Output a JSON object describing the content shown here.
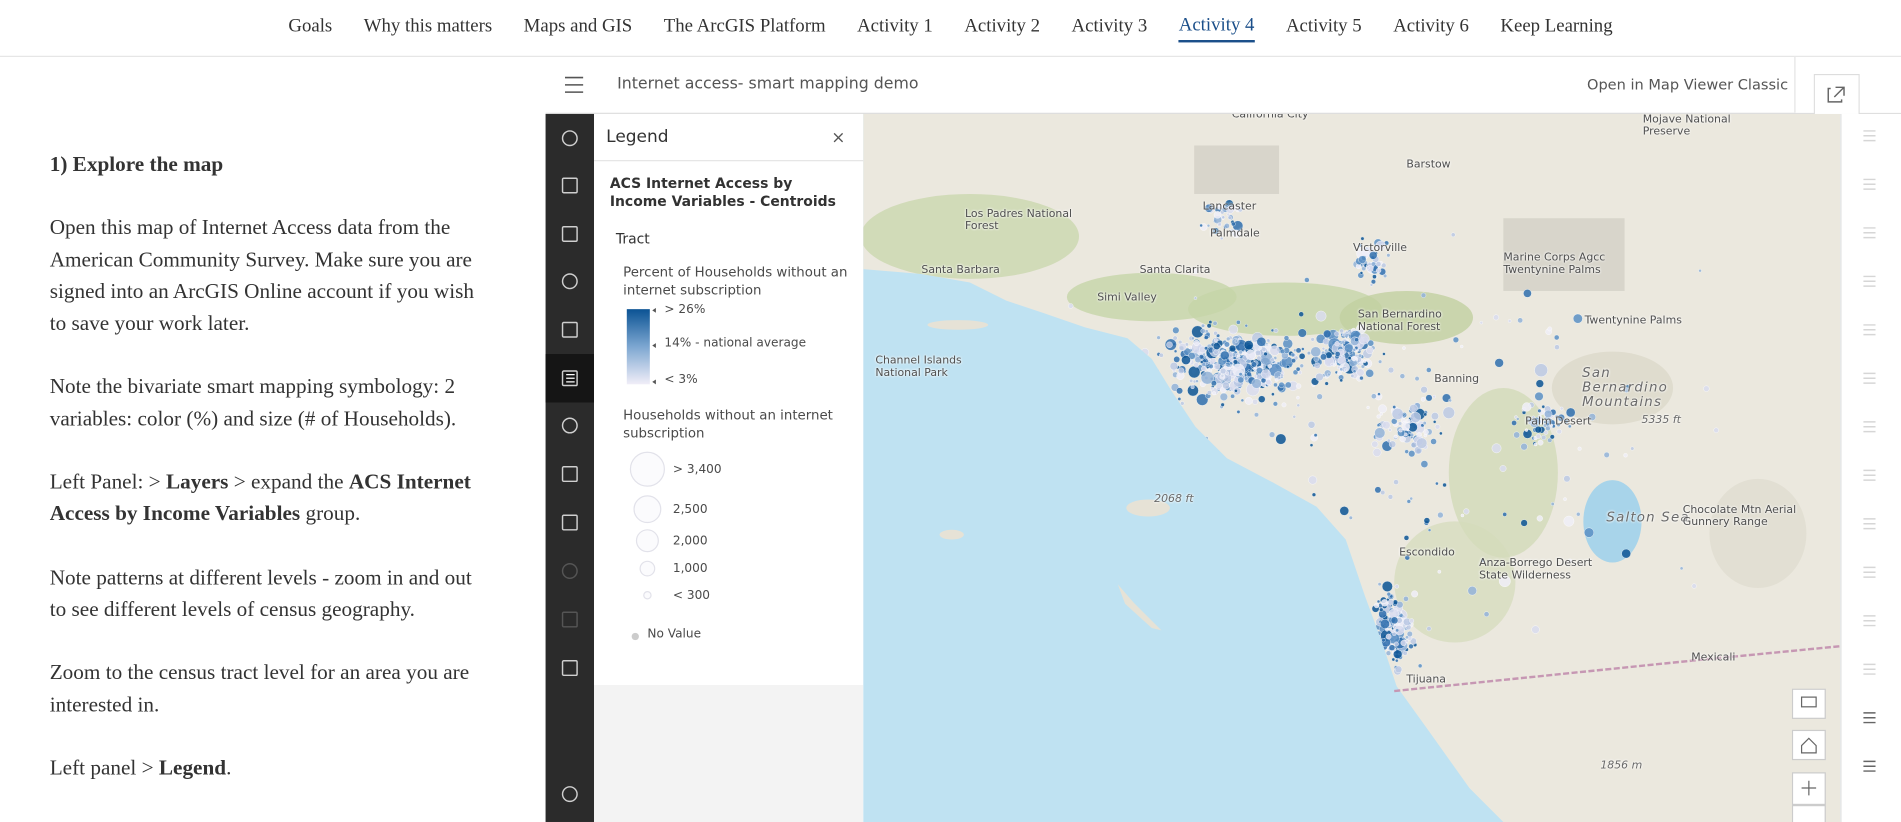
{
  "nav": {
    "items": [
      "Goals",
      "Why this matters",
      "Maps and GIS",
      "The ArcGIS Platform",
      "Activity 1",
      "Activity 2",
      "Activity 3",
      "Activity 4",
      "Activity 5",
      "Activity 6",
      "Keep Learning"
    ],
    "active": 7
  },
  "content": {
    "heading": "1) Explore the map",
    "paragraphs": [
      [
        {
          "text": "Open this map of Internet Access data from the American Community Survey.  Make sure you are signed into an ArcGIS Online account if you wish to save your work later.",
          "bold": false
        }
      ],
      [
        {
          "text": "Note the bivariate smart mapping symbology: 2 variables: color (%) and size (# of Households).",
          "bold": false
        }
      ],
      [
        {
          "text": "Left Panel:  > ",
          "bold": false
        },
        {
          "text": "Layers",
          "bold": true
        },
        {
          "text": " > expand the ",
          "bold": false
        },
        {
          "text": "ACS Internet Access by Income Variables",
          "bold": true
        },
        {
          "text": " group.",
          "bold": false
        }
      ],
      [
        {
          "text": "Note patterns at different levels - zoom in and out to see different levels of census geography.",
          "bold": false
        }
      ],
      [
        {
          "text": "Zoom to the census tract level for an area you are interested in.",
          "bold": false
        }
      ],
      [
        {
          "text": "Left panel > ",
          "bold": false
        },
        {
          "text": "Legend",
          "bold": true
        },
        {
          "text": ".",
          "bold": false
        }
      ]
    ]
  },
  "viewer": {
    "title": "Internet access- smart mapping demo",
    "open_classic": "Open in Map Viewer Classic"
  },
  "legend": {
    "title": "Legend",
    "layer": "ACS Internet Access by Income Variables - Centroids",
    "group": "Tract",
    "color_title": "Percent of Households without an internet subscription",
    "color_stops": [
      "> 26%",
      "14% - national average",
      "< 3%"
    ],
    "size_title": "Households without an internet subscription",
    "size_stops": [
      "> 3,400",
      "2,500",
      "2,000",
      "1,000",
      "< 300"
    ],
    "no_value": "No Value"
  },
  "map": {
    "labels": [
      "California City",
      "Mojave National Preserve",
      "Barstow",
      "Lancaster",
      "Palmdale",
      "Los Padres National Forest",
      "Victorville",
      "Marine Corps Agcc Twentynine Palms",
      "Santa Barbara",
      "Santa Clarita",
      "Simi Valley",
      "San Bernardino National Forest",
      "Twentynine Palms",
      "Channel Islands National Park",
      "Banning",
      "San Bernardino Mountains",
      "Palm Desert",
      "5335 ft",
      "2068 ft",
      "Salton Sea",
      "Chocolate Mtn Aerial Gunnery Range",
      "Escondido",
      "Anza-Borrego Desert State Wilderness",
      "Mexicali",
      "Tijuana",
      "1856 m"
    ]
  }
}
